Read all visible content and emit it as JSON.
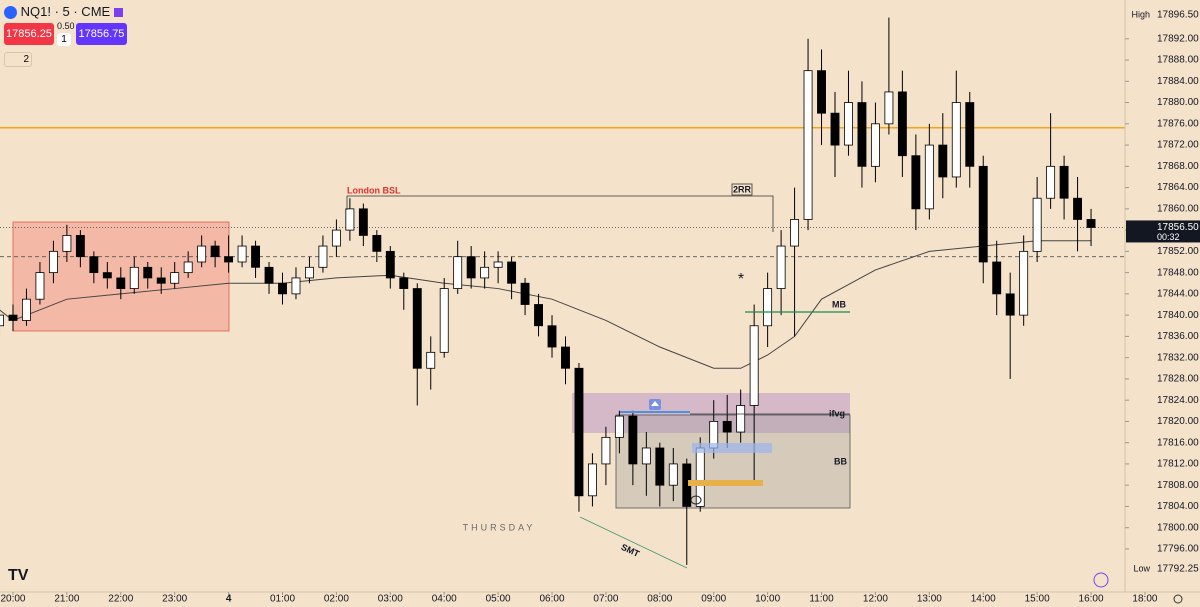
{
  "header": {
    "symbol": "NQ1! · 5 · CME",
    "sell": "17856.25",
    "spread": "0.50",
    "quantity": "1",
    "buy": "17856.75",
    "indicators": "2"
  },
  "chart_data": {
    "type": "candlestick",
    "x": [
      -0.25,
      0,
      0.25,
      0.5,
      0.75,
      1,
      1.25,
      1.5,
      1.75,
      2,
      2.25,
      2.5,
      2.75,
      3,
      3.25,
      3.5,
      3.75,
      4,
      4.25,
      4.5,
      4.75,
      5,
      5.25,
      5.5,
      5.75,
      6,
      6.25,
      6.5,
      6.75,
      7,
      7.25,
      7.5,
      7.75,
      8,
      8.25,
      8.5,
      8.75,
      9,
      9.25,
      9.5,
      9.75,
      10,
      10.25,
      10.5,
      10.75,
      11,
      11.25,
      11.5,
      11.75,
      12,
      12.25,
      12.5,
      12.75,
      13,
      13.25,
      13.5,
      13.75,
      14,
      14.25,
      14.5,
      14.75,
      15,
      15.25,
      15.5,
      15.75,
      16,
      16.25,
      16.5,
      16.75,
      17,
      17.25,
      17.5,
      17.75,
      18,
      18.25,
      18.5,
      18.75,
      19,
      19.25,
      19.5,
      19.75,
      20
    ],
    "open": [
      17838,
      17840,
      17839,
      17843,
      17848,
      17852,
      17855,
      17851,
      17848,
      17847,
      17845,
      17849,
      17847,
      17846,
      17848,
      17850,
      17853,
      17851,
      17850,
      17853,
      17849,
      17846,
      17844,
      17847,
      17849,
      17853,
      17856,
      17860,
      17855,
      17852,
      17847,
      17845,
      17830,
      17833,
      17845,
      17851,
      17847,
      17849,
      17850,
      17846,
      17842,
      17838,
      17834,
      17830,
      17806,
      17812,
      17817,
      17821,
      17812,
      17815,
      17808,
      17812,
      17804,
      17815,
      17820,
      17818,
      17823,
      17838,
      17845,
      17853,
      17858,
      17886,
      17878,
      17872,
      17880,
      17868,
      17876,
      17882,
      17870,
      17860,
      17872,
      17866,
      17880,
      17868,
      17850,
      17844,
      17840,
      17852,
      17862,
      17868,
      17862,
      17858
    ],
    "high": [
      17842,
      17842,
      17845,
      17850,
      17854,
      17857,
      17856,
      17852,
      17850,
      17849,
      17851,
      17850,
      17849,
      17850,
      17852,
      17855,
      17854,
      17855,
      17855,
      17854,
      17850,
      17848,
      17849,
      17851,
      17855,
      17858,
      17862,
      17861,
      17856,
      17853,
      17848,
      17846,
      17836,
      17847,
      17854,
      17853,
      17852,
      17852,
      17851,
      17847,
      17844,
      17840,
      17836,
      17831,
      17814,
      17819,
      17822,
      17822,
      17818,
      17816,
      17815,
      17813,
      17817,
      17824,
      17825,
      17826,
      17842,
      17848,
      17856,
      17864,
      17892,
      17890,
      17882,
      17886,
      17884,
      17880,
      17896,
      17886,
      17874,
      17876,
      17878,
      17886,
      17882,
      17870,
      17854,
      17848,
      17855,
      17866,
      17878,
      17870,
      17866,
      17860
    ],
    "low": [
      17836,
      17837,
      17838,
      17842,
      17846,
      17850,
      17849,
      17846,
      17845,
      17843,
      17844,
      17845,
      17844,
      17845,
      17847,
      17849,
      17849,
      17848,
      17849,
      17847,
      17844,
      17842,
      17843,
      17846,
      17848,
      17851,
      17854,
      17853,
      17850,
      17845,
      17841,
      17823,
      17826,
      17832,
      17844,
      17845,
      17845,
      17846,
      17843,
      17840,
      17836,
      17832,
      17827,
      17803,
      17804,
      17808,
      17814,
      17808,
      17806,
      17804,
      17805,
      17793,
      17803,
      17813,
      17815,
      17816,
      17808,
      17834,
      17840,
      17836,
      17856,
      17872,
      17866,
      17870,
      17864,
      17865,
      17874,
      17866,
      17856,
      17858,
      17862,
      17864,
      17864,
      17846,
      17840,
      17828,
      17838,
      17850,
      17860,
      17858,
      17852,
      17853
    ],
    "close": [
      17840,
      17839,
      17843,
      17848,
      17852,
      17855,
      17851,
      17848,
      17847,
      17845,
      17849,
      17847,
      17846,
      17848,
      17850,
      17853,
      17851,
      17850,
      17853,
      17849,
      17846,
      17844,
      17847,
      17849,
      17853,
      17856,
      17860,
      17855,
      17852,
      17847,
      17845,
      17830,
      17833,
      17845,
      17851,
      17847,
      17849,
      17850,
      17846,
      17842,
      17838,
      17834,
      17830,
      17806,
      17812,
      17817,
      17821,
      17812,
      17815,
      17808,
      17812,
      17804,
      17815,
      17820,
      17818,
      17823,
      17838,
      17845,
      17853,
      17858,
      17886,
      17878,
      17872,
      17880,
      17868,
      17876,
      17882,
      17870,
      17860,
      17872,
      17866,
      17880,
      17868,
      17850,
      17844,
      17840,
      17852,
      17862,
      17868,
      17862,
      17858,
      17856.5
    ],
    "up_color": "#ffffff",
    "down_color": "#000000",
    "average": {
      "color": "#444444",
      "x": [
        -0.25,
        0,
        1,
        2,
        3,
        4,
        5,
        6,
        7,
        8,
        9,
        10,
        11,
        12,
        13,
        13.5,
        14,
        14.5,
        15,
        16,
        17,
        18,
        19,
        20
      ],
      "values": [
        17841,
        17839,
        17843,
        17844,
        17845,
        17846,
        17846,
        17847,
        17847.5,
        17846,
        17845,
        17843,
        17839,
        17834,
        17830,
        17830,
        17832.5,
        17836,
        17843,
        17848.5,
        17852,
        17853,
        17854,
        17854
      ]
    },
    "levels": [
      {
        "value": 17875.25,
        "color": "#f2a516",
        "style": "solid"
      },
      {
        "value": 17856.5,
        "color": "#555555",
        "style": "dotted"
      },
      {
        "value": 17851,
        "color": "#555555",
        "style": "dashed"
      }
    ],
    "xlim": [
      -0.241,
      20.63
    ],
    "ylim": [
      17787.9,
      17899.3
    ],
    "xticks": [
      {
        "value": 0,
        "label": "20:00"
      },
      {
        "value": 1,
        "label": "21:00"
      },
      {
        "value": 2,
        "label": "22:00"
      },
      {
        "value": 3,
        "label": "23:00"
      },
      4,
      {
        "value": 5,
        "label": "01:00"
      },
      {
        "value": 6,
        "label": "02:00"
      },
      {
        "value": 7,
        "label": "03:00"
      },
      {
        "value": 8,
        "label": "04:00"
      },
      {
        "value": 9,
        "label": "05:00"
      },
      {
        "value": 10,
        "label": "06:00"
      },
      {
        "value": 11,
        "label": "07:00"
      },
      {
        "value": 12,
        "label": "08:00"
      },
      {
        "value": 13,
        "label": "09:00"
      },
      {
        "value": 14,
        "label": "10:00"
      },
      {
        "value": 15,
        "label": "11:00"
      },
      {
        "value": 16,
        "label": "12:00"
      },
      {
        "value": 17,
        "label": "13:00"
      },
      {
        "value": 18,
        "label": "14:00"
      },
      {
        "value": 19,
        "label": "15:00"
      },
      {
        "value": 20,
        "label": "16:00"
      },
      {
        "value": 21,
        "label": "18:00"
      }
    ],
    "yticks": [
      {
        "value": 17796,
        "label": "17796.00"
      },
      {
        "value": 17800,
        "label": "17800.00"
      },
      {
        "value": 17804,
        "label": "17804.00"
      },
      {
        "value": 17808,
        "label": "17808.00"
      },
      {
        "value": 17812,
        "label": "17812.00"
      },
      {
        "value": 17816,
        "label": "17816.00"
      },
      {
        "value": 17820,
        "label": "17820.00"
      },
      {
        "value": 17824,
        "label": "17824.00"
      },
      {
        "value": 17828,
        "label": "17828.00"
      },
      {
        "value": 17832,
        "label": "17832.00"
      },
      {
        "value": 17836,
        "label": "17836.00"
      },
      {
        "value": 17840,
        "label": "17840.00"
      },
      {
        "value": 17844,
        "label": "17844.00"
      },
      {
        "value": 17848,
        "label": "17848.00"
      },
      {
        "value": 17852,
        "label": "17852.00"
      },
      {
        "value": 17856,
        "label": "17856.00"
      },
      {
        "value": 17860,
        "label": "17860.00"
      },
      {
        "value": 17864,
        "label": "17864.00"
      },
      {
        "value": 17868,
        "label": "17868.00"
      },
      {
        "value": 17872,
        "label": "17872.00"
      },
      {
        "value": 17876,
        "label": "17876.00"
      },
      {
        "value": 17880,
        "label": "17880.00"
      },
      {
        "value": 17884,
        "label": "17884.00"
      },
      {
        "value": 17888,
        "label": "17888.00"
      },
      {
        "value": 17892,
        "label": "17892.00"
      }
    ],
    "high_marker": {
      "label": "High",
      "value": {
        "value": 17896.5,
        "label": "17896.50"
      }
    },
    "low_marker": {
      "label": "Low",
      "value": {
        "value": 17792.25,
        "label": "17792.25"
      }
    },
    "last_price": {
      "value": 17856.5,
      "label": "17856.50"
    },
    "countdown": "00:32",
    "annotations": {
      "london": "London BSL",
      "rr": "2RR",
      "mb": "MB",
      "ifvg": "ifvg",
      "bb": "BB",
      "smt": "SMT",
      "star": "*",
      "day": "THURSDAY"
    }
  }
}
